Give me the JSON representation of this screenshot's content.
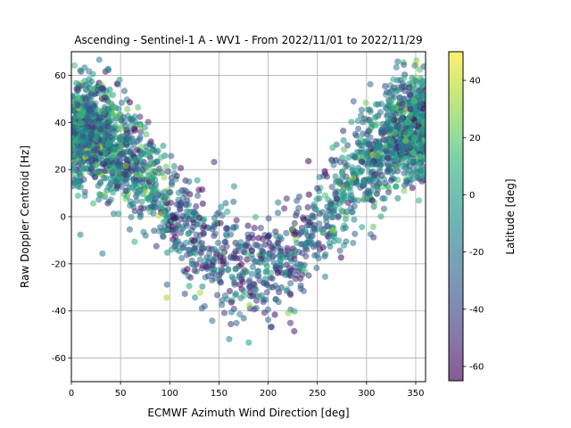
{
  "chart_data": {
    "type": "scatter",
    "title": "Ascending - Sentinel-1 A - WV1 - From 2022/11/01 to 2022/11/29",
    "xlabel": "ECMWF Azimuth Wind Direction [deg]",
    "ylabel": "Raw Doppler Centroid [Hz]",
    "xlim": [
      0,
      360
    ],
    "ylim": [
      -70,
      70
    ],
    "xticks": [
      0,
      50,
      100,
      150,
      200,
      250,
      300,
      350
    ],
    "yticks": [
      -60,
      -40,
      -20,
      0,
      20,
      40,
      60
    ],
    "grid": true,
    "marker_alpha": 0.55,
    "colorbar": {
      "label": "Latitude [deg]",
      "colormap": "viridis",
      "range": [
        -65,
        50
      ],
      "ticks": [
        -60,
        -40,
        -20,
        0,
        20,
        40
      ]
    },
    "trend": {
      "description_points": [
        [
          0,
          38
        ],
        [
          25,
          35
        ],
        [
          50,
          28
        ],
        [
          75,
          17
        ],
        [
          100,
          3
        ],
        [
          125,
          -8
        ],
        [
          150,
          -16
        ],
        [
          175,
          -21
        ],
        [
          200,
          -22
        ],
        [
          225,
          -16
        ],
        [
          250,
          -5
        ],
        [
          275,
          10
        ],
        [
          300,
          23
        ],
        [
          325,
          33
        ],
        [
          350,
          38
        ],
        [
          360,
          38
        ]
      ]
    },
    "colors": {
      "viridis": [
        "#440154",
        "#482878",
        "#3e4a89",
        "#31688e",
        "#26828e",
        "#1f9e89",
        "#35b779",
        "#6ece58",
        "#b5de2b",
        "#fde725"
      ]
    }
  }
}
